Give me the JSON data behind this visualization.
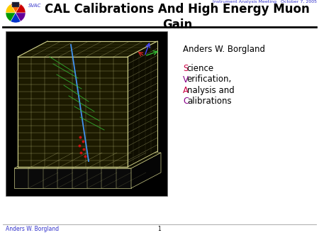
{
  "title_main": "CAL Calibrations And High Energy Muon\nGain",
  "header_right": "Instrument Analysis Meeting   October 7, 2005",
  "svac_text": "SVAC",
  "svac_color": "#3333cc",
  "title_color": "#000000",
  "header_right_color": "#3333cc",
  "body_text_name": "Anders W. Borgland",
  "body_text_lines": [
    "Science",
    "Verification,",
    "Analysis and",
    "Calibrations"
  ],
  "body_first_letter_colors": [
    "#cc0044",
    "#880088",
    "#cc0044",
    "#880088"
  ],
  "background_color": "#ffffff",
  "footer_text": "Anders W. Borgland",
  "footer_num": "1",
  "footer_color": "#3333cc",
  "line_color": "#000000",
  "wire_color": "#cccc88",
  "img_bg": "#000000"
}
